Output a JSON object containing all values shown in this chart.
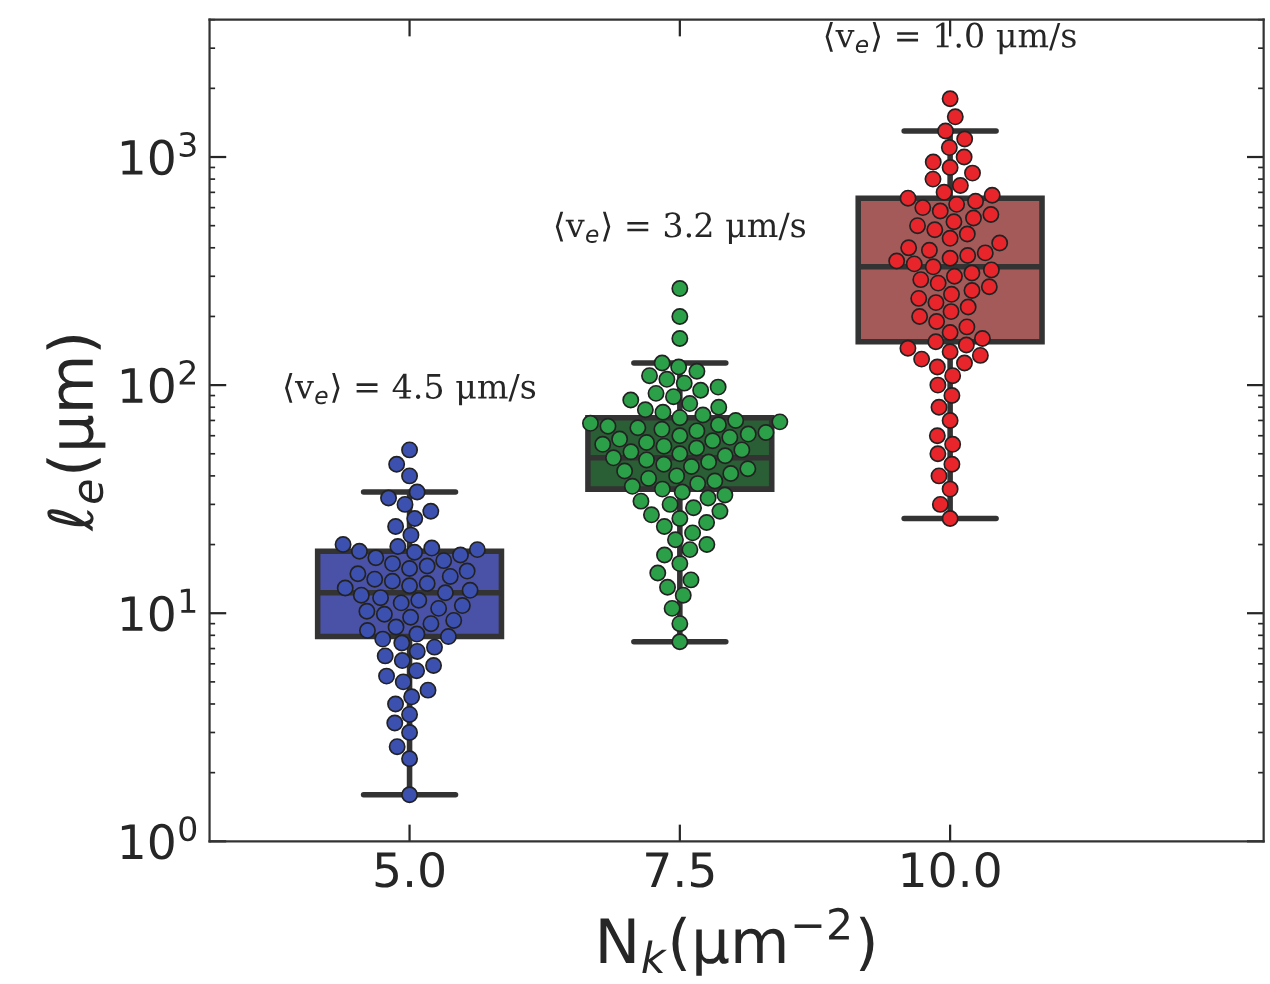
{
  "chart_data": {
    "type": "box",
    "categories": [
      "5.0",
      "7.5",
      "10.0"
    ],
    "xlabel": "N$_{k}$(μm$^{−2}$)",
    "ylabel": "ℓ$_{e}$(μm)",
    "log": true,
    "ylim": [
      1,
      4000
    ],
    "yticks": [
      {
        "value": 1,
        "label": "10$^{0}$"
      },
      {
        "value": 10,
        "label": "10$^{1}$"
      },
      {
        "value": 100,
        "label": "10$^{2}$"
      },
      {
        "value": 1000,
        "label": "10$^{3}$"
      }
    ],
    "grid": false,
    "legend": false,
    "colors": [
      "#4a52a8",
      "#2a5e35",
      "#a55a5a"
    ],
    "boxes": [
      {
        "low": 1.6,
        "q1": 7.9,
        "median": 12.3,
        "q3": 18.7,
        "high": 34
      },
      {
        "low": 7.5,
        "q1": 35,
        "median": 48,
        "q3": 72,
        "high": 125
      },
      {
        "low": 26,
        "q1": 155,
        "median": 330,
        "q3": 660,
        "high": 1300
      }
    ],
    "series": [
      {
        "type": "scatter",
        "color": "#3c50b0",
        "x": [
          "5.0",
          "5.0",
          "5.0",
          "5.0",
          "5.0",
          "5.0",
          "5.0",
          "5.0",
          "5.0",
          "5.0",
          "5.0",
          "5.0",
          "5.0",
          "5.0",
          "5.0",
          "5.0",
          "5.0",
          "5.0",
          "5.0",
          "5.0",
          "5.0",
          "5.0",
          "5.0",
          "5.0",
          "5.0",
          "5.0",
          "5.0",
          "5.0",
          "5.0",
          "5.0",
          "5.0",
          "5.0",
          "5.0",
          "5.0",
          "5.0",
          "5.0",
          "5.0",
          "5.0",
          "5.0",
          "5.0",
          "5.0",
          "5.0",
          "5.0",
          "5.0",
          "5.0",
          "5.0",
          "5.0",
          "5.0",
          "5.0",
          "5.0",
          "5.0",
          "5.0",
          "5.0",
          "5.0",
          "5.0",
          "5.0",
          "5.0",
          "5.0",
          "5.0",
          "5.0",
          "5.0",
          "5.0",
          "5.0",
          "5.0",
          "5.0",
          "5.0"
        ],
        "values": [
          1.6,
          2.3,
          2.6,
          3.0,
          3.3,
          3.6,
          4.0,
          4.3,
          4.6,
          5.0,
          5.3,
          5.6,
          5.9,
          6.2,
          6.5,
          6.8,
          7.1,
          7.4,
          7.7,
          7.9,
          8.1,
          8.4,
          8.7,
          9.0,
          9.3,
          9.6,
          9.9,
          10.2,
          10.5,
          10.8,
          11.1,
          11.4,
          11.7,
          12.0,
          12.3,
          12.6,
          12.9,
          13.2,
          13.5,
          13.8,
          14.1,
          14.5,
          14.9,
          15.3,
          15.7,
          16.1,
          16.5,
          17.0,
          17.5,
          18.0,
          18.5,
          18.7,
          19.0,
          19.3,
          19.6,
          20,
          22,
          24,
          26,
          28,
          30,
          32,
          34,
          40,
          45,
          52
        ]
      },
      {
        "type": "scatter",
        "color": "#2ca048",
        "x": [
          "7.5",
          "7.5",
          "7.5",
          "7.5",
          "7.5",
          "7.5",
          "7.5",
          "7.5",
          "7.5",
          "7.5",
          "7.5",
          "7.5",
          "7.5",
          "7.5",
          "7.5",
          "7.5",
          "7.5",
          "7.5",
          "7.5",
          "7.5",
          "7.5",
          "7.5",
          "7.5",
          "7.5",
          "7.5",
          "7.5",
          "7.5",
          "7.5",
          "7.5",
          "7.5",
          "7.5",
          "7.5",
          "7.5",
          "7.5",
          "7.5",
          "7.5",
          "7.5",
          "7.5",
          "7.5",
          "7.5",
          "7.5",
          "7.5",
          "7.5",
          "7.5",
          "7.5",
          "7.5",
          "7.5",
          "7.5",
          "7.5",
          "7.5",
          "7.5",
          "7.5",
          "7.5",
          "7.5",
          "7.5",
          "7.5",
          "7.5",
          "7.5",
          "7.5",
          "7.5",
          "7.5",
          "7.5",
          "7.5",
          "7.5",
          "7.5",
          "7.5",
          "7.5",
          "7.5",
          "7.5",
          "7.5",
          "7.5",
          "7.5",
          "7.5",
          "7.5",
          "7.5",
          "7.5",
          "7.5",
          "7.5",
          "7.5",
          "7.5"
        ],
        "values": [
          7.5,
          9,
          10.5,
          12,
          13,
          14,
          15,
          16.5,
          18,
          19,
          20,
          21,
          22.5,
          24,
          25,
          26,
          27,
          28,
          29,
          30,
          31,
          32,
          33,
          34,
          35,
          36,
          37,
          38,
          39,
          40,
          41,
          42,
          43,
          44,
          45,
          46,
          47,
          48,
          49,
          50,
          51,
          52,
          53,
          54,
          55,
          56,
          57,
          58,
          59,
          60,
          61,
          62,
          63,
          64,
          65,
          66,
          67,
          68,
          69,
          70,
          72,
          74,
          76,
          78,
          80,
          83,
          86,
          89,
          92,
          95,
          98,
          102,
          106,
          110,
          115,
          120,
          125,
          160,
          200,
          265
        ]
      },
      {
        "type": "scatter",
        "color": "#e8252a",
        "x": [
          "10.0",
          "10.0",
          "10.0",
          "10.0",
          "10.0",
          "10.0",
          "10.0",
          "10.0",
          "10.0",
          "10.0",
          "10.0",
          "10.0",
          "10.0",
          "10.0",
          "10.0",
          "10.0",
          "10.0",
          "10.0",
          "10.0",
          "10.0",
          "10.0",
          "10.0",
          "10.0",
          "10.0",
          "10.0",
          "10.0",
          "10.0",
          "10.0",
          "10.0",
          "10.0",
          "10.0",
          "10.0",
          "10.0",
          "10.0",
          "10.0",
          "10.0",
          "10.0",
          "10.0",
          "10.0",
          "10.0",
          "10.0",
          "10.0",
          "10.0",
          "10.0",
          "10.0",
          "10.0",
          "10.0",
          "10.0",
          "10.0",
          "10.0",
          "10.0",
          "10.0",
          "10.0",
          "10.0",
          "10.0",
          "10.0",
          "10.0",
          "10.0",
          "10.0",
          "10.0",
          "10.0",
          "10.0",
          "10.0",
          "10.0",
          "10.0",
          "10.0",
          "10.0",
          "10.0",
          "10.0",
          "10.0",
          "10.0",
          "10.0"
        ],
        "values": [
          26,
          30,
          35,
          40,
          45,
          50,
          55,
          60,
          70,
          80,
          90,
          100,
          110,
          120,
          125,
          130,
          135,
          140,
          145,
          150,
          155,
          160,
          170,
          180,
          190,
          200,
          210,
          220,
          230,
          240,
          250,
          260,
          270,
          280,
          290,
          300,
          310,
          320,
          330,
          340,
          350,
          360,
          370,
          380,
          390,
          400,
          420,
          440,
          460,
          480,
          500,
          520,
          540,
          560,
          580,
          600,
          620,
          640,
          660,
          680,
          700,
          750,
          800,
          850,
          900,
          950,
          1000,
          1100,
          1200,
          1300,
          1500,
          1800
        ]
      }
    ],
    "annotations": [
      "⟨v$_{e}$⟩ = 4.5 μm/s",
      "⟨v$_{e}$⟩ = 3.2 μm/s",
      "⟨v$_{e}$⟩ = 1.0 μm/s"
    ]
  }
}
